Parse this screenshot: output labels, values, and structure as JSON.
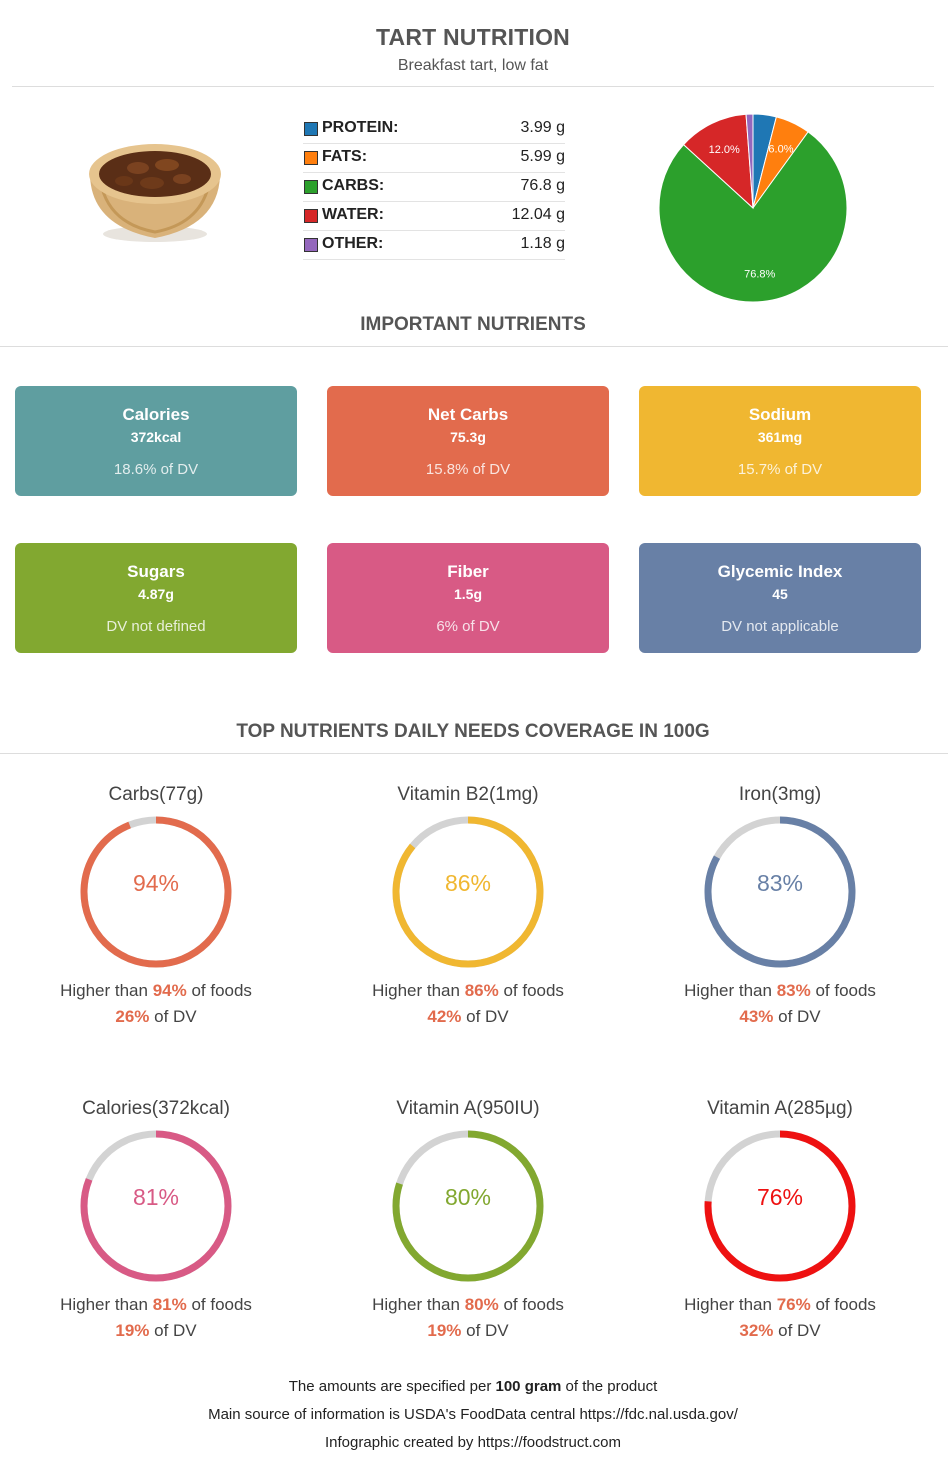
{
  "header": {
    "title": "TART NUTRITION",
    "subtitle": "Breakfast tart, low fat"
  },
  "macros": [
    {
      "name": "PROTEIN:",
      "value": "3.99 g",
      "color": "#1f77b4"
    },
    {
      "name": "FATS:",
      "value": "5.99 g",
      "color": "#ff7f0e"
    },
    {
      "name": "CARBS:",
      "value": "76.8 g",
      "color": "#2ca02c"
    },
    {
      "name": "WATER:",
      "value": "12.04 g",
      "color": "#d62728"
    },
    {
      "name": "OTHER:",
      "value": "1.18 g",
      "color": "#9467bd"
    }
  ],
  "chart_data": {
    "type": "pie",
    "slices": [
      {
        "label": "PROTEIN",
        "value": 3.99,
        "color": "#1f77b4"
      },
      {
        "label": "FATS",
        "value": 5.99,
        "color": "#ff7f0e"
      },
      {
        "label": "CARBS",
        "value": 76.8,
        "color": "#2ca02c"
      },
      {
        "label": "WATER",
        "value": 12.04,
        "color": "#d62728"
      },
      {
        "label": "OTHER",
        "value": 1.18,
        "color": "#9467bd"
      }
    ],
    "slice_labels": [
      {
        "label": "FATS",
        "text": "6.0%"
      },
      {
        "label": "CARBS",
        "text": "76.8%"
      },
      {
        "label": "WATER",
        "text": "12.0%"
      }
    ]
  },
  "important": {
    "title": "IMPORTANT NUTRIENTS",
    "cards": [
      {
        "label": "Calories",
        "value": "372kcal",
        "dv": "18.6% of DV",
        "color": "#5f9ea0"
      },
      {
        "label": "Net Carbs",
        "value": "75.3g",
        "dv": "15.8% of DV",
        "color": "#e26b4d"
      },
      {
        "label": "Sodium",
        "value": "361mg",
        "dv": "15.7% of DV",
        "color": "#f0b731"
      },
      {
        "label": "Sugars",
        "value": "4.87g",
        "dv": "DV not defined",
        "color": "#82a830"
      },
      {
        "label": "Fiber",
        "value": "1.5g",
        "dv": "6% of DV",
        "color": "#d85a85"
      },
      {
        "label": "Glycemic Index",
        "value": "45",
        "dv": "DV not applicable",
        "color": "#6880a6"
      }
    ]
  },
  "coverage": {
    "title": "TOP NUTRIENTS DAILY NEEDS COVERAGE IN 100G",
    "higher_prefix": "Higher than ",
    "higher_suffix": " of foods",
    "dv_suffix": " of DV",
    "items": [
      {
        "name": "Carbs(77g)",
        "pct": "94%",
        "percent": 94,
        "dv": "26%",
        "color": "#e26b4d"
      },
      {
        "name": "Vitamin B2(1mg)",
        "pct": "86%",
        "percent": 86,
        "dv": "42%",
        "color": "#f0b731"
      },
      {
        "name": "Iron(3mg)",
        "pct": "83%",
        "percent": 83,
        "dv": "43%",
        "color": "#6880a6"
      },
      {
        "name": "Calories(372kcal)",
        "pct": "81%",
        "percent": 81,
        "dv": "19%",
        "color": "#d85a85"
      },
      {
        "name": "Vitamin A(950IU)",
        "pct": "80%",
        "percent": 80,
        "dv": "19%",
        "color": "#82a830"
      },
      {
        "name": "Vitamin A(285µg)",
        "pct": "76%",
        "percent": 76,
        "dv": "32%",
        "color": "#ee1111"
      }
    ]
  },
  "footer": {
    "line1_pre": "The amounts are specified per ",
    "line1_bold": "100 gram",
    "line1_post": " of the product",
    "line2": "Main source of information is USDA's FoodData central https://fdc.nal.usda.gov/",
    "line3": "Infographic created by https://foodstruct.com"
  }
}
